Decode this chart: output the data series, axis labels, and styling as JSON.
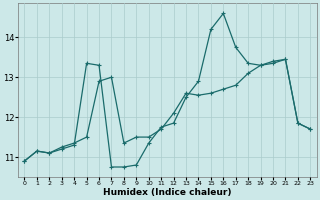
{
  "xlabel": "Humidex (Indice chaleur)",
  "background_color": "#cce8e8",
  "grid_color": "#aacccc",
  "line_color": "#1a6b6b",
  "xlim": [
    -0.5,
    23.5
  ],
  "ylim": [
    10.5,
    14.85
  ],
  "yticks": [
    11,
    12,
    13,
    14
  ],
  "xticks": [
    0,
    1,
    2,
    3,
    4,
    5,
    6,
    7,
    8,
    9,
    10,
    11,
    12,
    13,
    14,
    15,
    16,
    17,
    18,
    19,
    20,
    21,
    22,
    23
  ],
  "line1_x": [
    0,
    1,
    2,
    3,
    4,
    5,
    6,
    7,
    8,
    9,
    10,
    11,
    12,
    13,
    14,
    15,
    16,
    17,
    18,
    19,
    20,
    21,
    22,
    23
  ],
  "line1_y": [
    10.9,
    11.15,
    11.1,
    11.2,
    11.3,
    13.35,
    13.3,
    10.75,
    10.75,
    10.8,
    11.35,
    11.75,
    11.85,
    12.5,
    12.9,
    14.2,
    14.6,
    13.75,
    13.35,
    13.3,
    13.4,
    13.45,
    11.85,
    11.7
  ],
  "line2_x": [
    0,
    1,
    2,
    3,
    4,
    5,
    6,
    7,
    8,
    9,
    10,
    11,
    12,
    13,
    14,
    15,
    16,
    17,
    18,
    19,
    20,
    21,
    22,
    23
  ],
  "line2_y": [
    10.9,
    11.15,
    11.1,
    11.25,
    11.35,
    11.5,
    12.9,
    13.0,
    11.35,
    11.5,
    11.5,
    11.7,
    12.1,
    12.6,
    12.55,
    12.6,
    12.7,
    12.8,
    13.1,
    13.3,
    13.35,
    13.45,
    11.85,
    11.7
  ]
}
